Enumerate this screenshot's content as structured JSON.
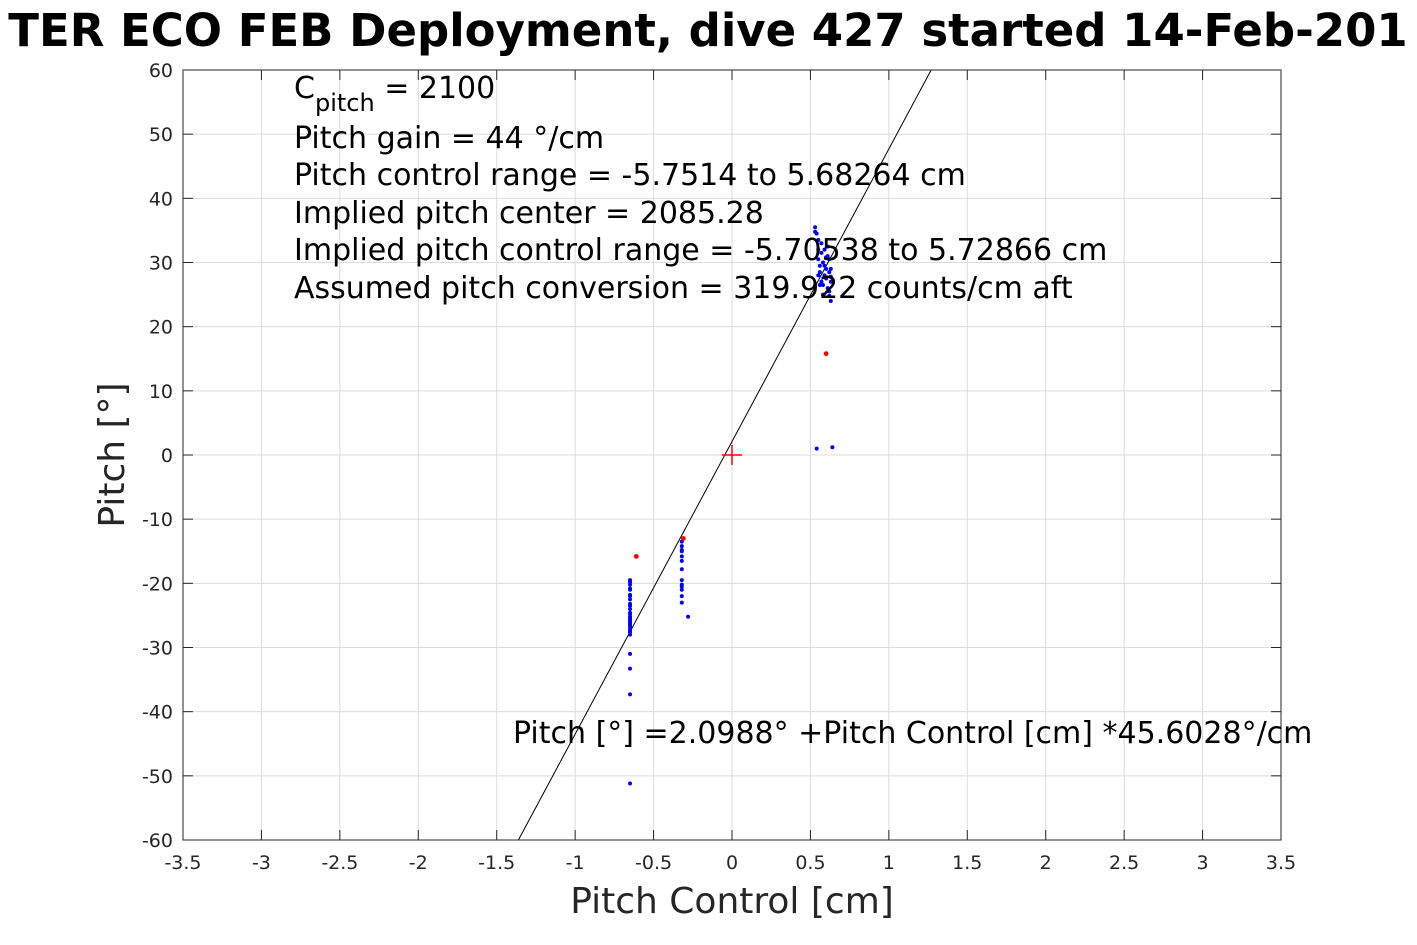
{
  "colors": {
    "background": "#ffffff",
    "axes": "#262626",
    "grid": "#dcdcdc",
    "fit_line": "#000000",
    "points_main": "#0000ff",
    "points_flagged": "#ff0000",
    "center_marker": "#ff0000"
  },
  "chart_data": {
    "type": "scatter",
    "title": "TER ECO FEB Deployment, dive 427 started 14-Feb-201",
    "xlabel": "Pitch Control [cm]",
    "ylabel": "Pitch [°]",
    "xlim": [
      -3.5,
      3.5
    ],
    "ylim": [
      -60,
      60
    ],
    "xticks": [
      -3.5,
      -3,
      -2.5,
      -2,
      -1.5,
      -1,
      -0.5,
      0,
      0.5,
      1,
      1.5,
      2,
      2.5,
      3,
      3.5
    ],
    "yticks": [
      -60,
      -50,
      -40,
      -30,
      -20,
      -10,
      0,
      10,
      20,
      30,
      40,
      50,
      60
    ],
    "grid": true,
    "annotations": {
      "c_pitch_symbol": "C",
      "c_pitch_subscript": "pitch",
      "c_pitch_value": " = 2100",
      "lines": [
        "Pitch gain = 44 °/cm",
        "Pitch control range = -5.7514 to 5.68264 cm",
        "Implied pitch center = 2085.28",
        "Implied pitch control range = -5.70538 to 5.72866 cm",
        "Assumed pitch conversion = 319.922 counts/cm aft"
      ],
      "fit_equation": "Pitch [°] =2.0988° +Pitch Control [cm] *45.6028°/cm"
    },
    "fit": {
      "intercept": 2.0988,
      "slope": 45.6028
    },
    "center_marker": {
      "x": 0,
      "y": 0
    },
    "series": [
      {
        "color": "#0000ff",
        "x": [
          -0.65,
          -0.65,
          -0.65,
          -0.65,
          -0.65,
          -0.65,
          -0.65,
          -0.65,
          -0.65,
          -0.65,
          -0.65,
          -0.65,
          -0.65,
          -0.65,
          -0.65,
          -0.65,
          -0.65,
          -0.65,
          -0.65,
          -0.65,
          -0.65,
          -0.65,
          -0.65,
          -0.65,
          -0.65,
          -0.65,
          -0.65,
          -0.65,
          -0.32,
          -0.32,
          -0.32,
          -0.32,
          -0.32,
          -0.32,
          -0.32,
          -0.32,
          -0.32,
          -0.32,
          -0.32,
          -0.32,
          -0.32,
          -0.28,
          0.53,
          0.54,
          0.55,
          0.55,
          0.55,
          0.56,
          0.56,
          0.57,
          0.57,
          0.58,
          0.58,
          0.58,
          0.59,
          0.59,
          0.6,
          0.6,
          0.61,
          0.61,
          0.62,
          0.62,
          0.62,
          0.63,
          0.63,
          0.63,
          0.56,
          0.55,
          0.59,
          0.61,
          0.57,
          0.6,
          0.62,
          0.54,
          0.64,
          0.53,
          0.63
        ],
        "y": [
          -19.5,
          -20.2,
          -21.0,
          -21.8,
          -22.5,
          -23.2,
          -24.0,
          -24.6,
          -25.2,
          -25.8,
          -26.3,
          -26.8,
          -27.2,
          -27.6,
          -28.0,
          -26.0,
          -23.5,
          -22.0,
          -20.8,
          -19.8,
          -27.5,
          -26.5,
          -25.5,
          -31.0,
          -33.3,
          -37.3,
          -51.2,
          -24.8,
          -13.5,
          -14.2,
          -15.0,
          -15.8,
          -16.5,
          -17.8,
          -19.5,
          -20.2,
          -21.0,
          -22.0,
          -23.0,
          -14.8,
          -20.5,
          -25.2,
          35.5,
          34.5,
          33.5,
          32.0,
          30.5,
          29.5,
          28.5,
          27.0,
          31.5,
          30.0,
          26.5,
          25.0,
          28.0,
          32.0,
          29.0,
          27.5,
          31.0,
          26.0,
          30.5,
          28.5,
          25.5,
          29.0,
          27.0,
          24.0,
          26.5,
          28.0,
          29.5,
          32.5,
          33.0,
          30.8,
          24.8,
          1.0,
          1.2,
          34.8,
          27.8
        ]
      },
      {
        "color": "#ff0000",
        "x": [
          -0.61,
          -0.31,
          0.6
        ],
        "y": [
          -15.8,
          -13.0,
          15.8
        ]
      }
    ]
  }
}
